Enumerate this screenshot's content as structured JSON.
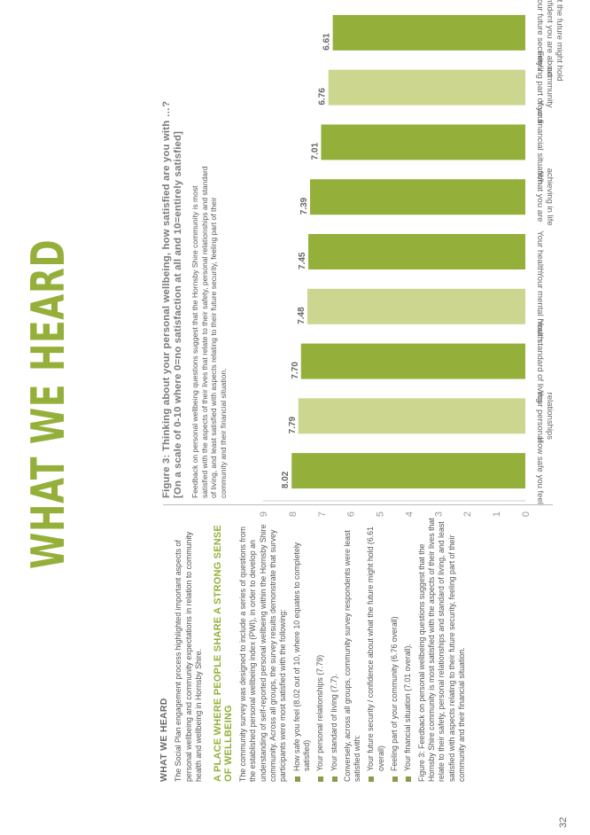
{
  "page_number": "32",
  "title": "WHAT WE HEARD",
  "left_column": {
    "heading": "WHAT WE HEARD",
    "intro": "The Social Plan engagement process highlighted important aspects of personal wellbeing and community expectations in relation to community health and wellbeing in Hornsby Shire.",
    "subheading": "A PLACE WHERE PEOPLE SHARE A STRONG SENSE OF WELLBEING",
    "para1": "The community survey was designed to include a series of questions from the established personal wellbeing index (PWI), in order to develop an understanding of self-reported personal wellbeing within the Hornsby Shire community. Across all groups, the survey results demonstrate that survey participants were most satisfied with the following:",
    "bullets_most": [
      "How safe you feel (8.02 out of 10, where 10 equates to completely satisfied)",
      "Your personal relationships (7.79)",
      "Your standard of living (7.7)."
    ],
    "para2": "Conversely, across all groups, community survey respondents were least satisfied with:",
    "bullets_least": [
      "Your future security / confidence about what the future might hold (6.61 overall)",
      "Feeling part of your community (6.76 overall)",
      "Your financial situation (7.01 overall)."
    ],
    "caption": "Figure 3: Feedback on personal wellbeing questions suggest that the Hornsby Shire community is most satisfied with the aspects of their lives that relate to their safety, personal relationships and standard of living, and least satisfied with aspects relating to their future security, feeling part of their community and their financial situation."
  },
  "figure": {
    "title": "Figure 3: Thinking about your personal wellbeing, how satisfied are you with …?",
    "subtitle": "[On a scale of 0-10 where 0=no satisfaction at all and 10=entirely satisfied]",
    "description": "Feedback on personal wellbeing questions suggest that the Hornsby Shire community is most satisfied with the aspects of their lives that relate to their safety, personal relationships and standard of living, and least satisfied with aspects relating to their future security, feeling part of their community and their financial situation."
  },
  "colors": {
    "accent": "#95b03a",
    "dark_bar": "#95b03a",
    "light_bar": "#cdd68f"
  },
  "chart_data": {
    "type": "bar",
    "categories": [
      [
        "How safe you feel"
      ],
      [
        "Your personal",
        "relationships"
      ],
      [
        "Your standard of living"
      ],
      [
        "Your mental health"
      ],
      [
        "Your health"
      ],
      [
        "What you are",
        "achieving in life"
      ],
      [
        "Your financial situation"
      ],
      [
        "Feeling part of your",
        "community"
      ],
      [
        "Your future security /",
        "confident you are about",
        "what the future might hold"
      ]
    ],
    "values": [
      8.02,
      7.79,
      7.7,
      7.48,
      7.45,
      7.39,
      7.01,
      6.76,
      6.61
    ],
    "value_labels": [
      "8.02",
      "7.79",
      "7.70",
      "7.48",
      "7.45",
      "7.39",
      "7.01",
      "6.76",
      "6.61"
    ],
    "shades": [
      "dark",
      "light",
      "dark",
      "light",
      "dark",
      "dark",
      "dark",
      "light",
      "dark"
    ],
    "axis_ticks": [
      "0",
      "1",
      "2",
      "3",
      "4",
      "5",
      "6",
      "7",
      "8",
      "9"
    ],
    "ylim": [
      0,
      9
    ],
    "grid": false
  }
}
